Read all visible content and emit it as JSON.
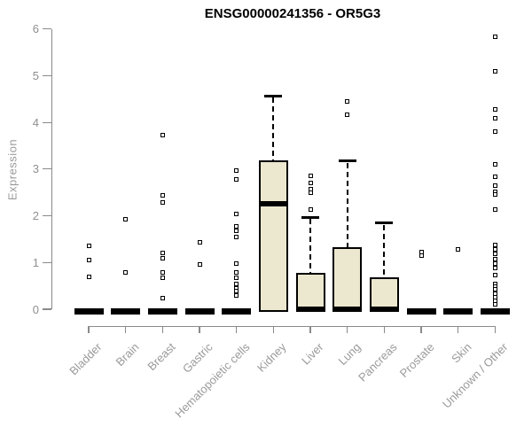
{
  "title": "ENSG00000241356 - OR5G3",
  "y_axis": {
    "label": "Expression",
    "ticks": [
      0,
      1,
      2,
      3,
      4,
      5,
      6
    ],
    "min": 0,
    "max": 6
  },
  "colors": {
    "box_fill": "#ECE8CF",
    "box_border": "#000000",
    "median": "#000000",
    "axis": "#8a8a8a",
    "tick_label": "#8f8f8f",
    "category_label": "#9a9a9a",
    "title": "#000000",
    "background": "#ffffff"
  },
  "chart_data": {
    "type": "boxplot",
    "title": "ENSG00000241356 - OR5G3",
    "xlabel": "",
    "ylabel": "Expression",
    "ylim": [
      0,
      6
    ],
    "grid": false,
    "categories": [
      "Bladder",
      "Brain",
      "Breast",
      "Gastric",
      "Hematopoietic cells",
      "Kidney",
      "Liver",
      "Lung",
      "Pancreas",
      "Prostate",
      "Skin",
      "Unknown / Other"
    ],
    "series": [
      {
        "name": "Bladder",
        "q1": 0,
        "median": 0,
        "q3": 0,
        "whisker_low": 0,
        "whisker_high": 0,
        "outliers": [
          1.35,
          1.06,
          0.7
        ]
      },
      {
        "name": "Brain",
        "q1": 0,
        "median": 0,
        "q3": 0,
        "whisker_low": 0,
        "whisker_high": 0,
        "outliers": [
          1.92,
          0.78
        ]
      },
      {
        "name": "Breast",
        "q1": 0,
        "median": 0,
        "q3": 0,
        "whisker_low": 0,
        "whisker_high": 0,
        "outliers": [
          3.72,
          2.43,
          2.28,
          1.2,
          1.09,
          0.78,
          0.68,
          0.23
        ]
      },
      {
        "name": "Gastric",
        "q1": 0,
        "median": 0,
        "q3": 0,
        "whisker_low": 0,
        "whisker_high": 0,
        "outliers": [
          1.44,
          0.95
        ]
      },
      {
        "name": "Hematopoietic cells",
        "q1": 0,
        "median": 0,
        "q3": 0,
        "whisker_low": 0,
        "whisker_high": 0,
        "outliers": [
          2.97,
          2.78,
          2.04,
          1.78,
          1.67,
          1.54,
          0.97,
          0.78,
          0.68,
          0.55,
          0.45,
          0.38,
          0.3
        ]
      },
      {
        "name": "Kidney",
        "q1": 0,
        "median": 2.26,
        "q3": 3.19,
        "whisker_low": 0,
        "whisker_high": 4.57,
        "outliers": []
      },
      {
        "name": "Liver",
        "q1": 0,
        "median": 0,
        "q3": 0.77,
        "whisker_low": 0,
        "whisker_high": 1.97,
        "outliers": [
          2.86,
          2.7,
          2.57,
          2.5,
          2.13
        ]
      },
      {
        "name": "Lung",
        "q1": 0,
        "median": 0,
        "q3": 1.33,
        "whisker_low": 0,
        "whisker_high": 3.17,
        "outliers": [
          4.45,
          4.16
        ]
      },
      {
        "name": "Pancreas",
        "q1": 0,
        "median": 0,
        "q3": 0.69,
        "whisker_low": 0,
        "whisker_high": 1.85,
        "outliers": []
      },
      {
        "name": "Prostate",
        "q1": 0,
        "median": 0,
        "q3": 0,
        "whisker_low": 0,
        "whisker_high": 0,
        "outliers": [
          1.22,
          1.15
        ]
      },
      {
        "name": "Skin",
        "q1": 0,
        "median": 0,
        "q3": 0,
        "whisker_low": 0,
        "whisker_high": 0,
        "outliers": [
          1.28
        ]
      },
      {
        "name": "Unknown / Other",
        "q1": 0,
        "median": 0,
        "q3": 0,
        "whisker_low": 0,
        "whisker_high": 0,
        "outliers": [
          5.83,
          5.1,
          4.28,
          4.09,
          3.81,
          3.11,
          2.83,
          2.64,
          2.52,
          2.45,
          2.13,
          1.37,
          1.28,
          1.18,
          1.08,
          0.98,
          0.88,
          0.74,
          0.55,
          0.49,
          0.42,
          0.34,
          0.26,
          0.18,
          0.1
        ]
      }
    ]
  }
}
